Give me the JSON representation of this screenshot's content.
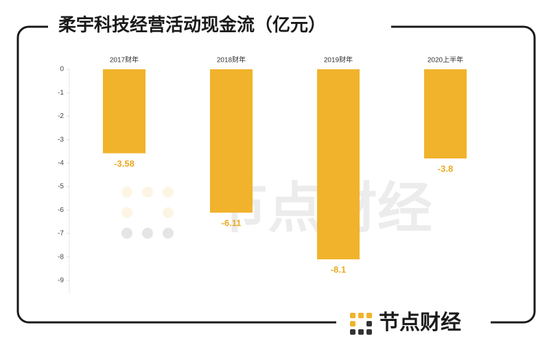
{
  "chart_data": {
    "type": "bar",
    "title": "柔宇科技经营活动现金流（亿元）",
    "categories": [
      "2017财年",
      "2018财年",
      "2019财年",
      "2020上半年"
    ],
    "values": [
      -3.58,
      -6.11,
      -8.1,
      -3.8
    ],
    "color": "#f0b32b",
    "label_color": "#e9a922",
    "ylim": [
      -9.5,
      0
    ],
    "yticks": [
      0,
      -1,
      -2,
      -3,
      -4,
      -5,
      -6,
      -7,
      -8,
      -9
    ]
  },
  "watermark": "节点财经",
  "brand": "节点财经"
}
